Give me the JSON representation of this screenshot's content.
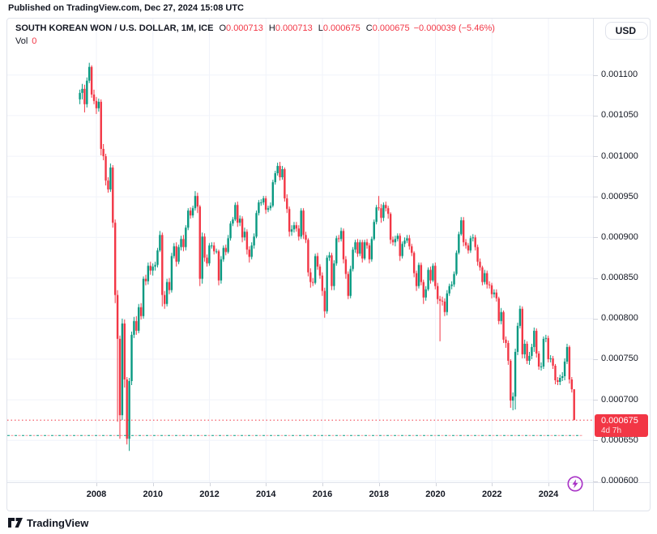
{
  "published_bar": {
    "text": "Published on TradingView.com, Dec 27, 2024 15:08 UTC"
  },
  "header": {
    "symbol": "SOUTH KOREAN WON / U.S. DOLLAR, 1M, ICE",
    "fields": [
      {
        "label": "O",
        "value": "0.000713"
      },
      {
        "label": "H",
        "value": "0.000713"
      },
      {
        "label": "L",
        "value": "0.000675"
      },
      {
        "label": "C",
        "value": "0.000675"
      }
    ],
    "change": "−0.000039 (−5.46%)",
    "volume_label": "Vol",
    "volume_value": "0",
    "currency_button": "USD"
  },
  "footer": {
    "brand": "TradingView"
  },
  "colors": {
    "up": "#089981",
    "down": "#f23645",
    "grid": "#f0f3fa",
    "border": "#e0e3eb",
    "axis_text": "#131722",
    "price_tag_bg": "#f23645",
    "boost_purple": "#a832c6"
  },
  "chart_data": {
    "type": "candlestick",
    "title": "SOUTH KOREAN WON / U.S. DOLLAR",
    "timeframe": "1M",
    "exchange": "ICE",
    "start_month": "2007-06",
    "end_month": "2024-12",
    "unit": "USD per KRW, values in millionths (675 = 0.000675)",
    "candle_format": "[close, upper_wick, lower_wick]; open = previous close",
    "first_open": 1070,
    "candles": [
      [
        1078,
        4,
        6
      ],
      [
        1083,
        6,
        8
      ],
      [
        1064,
        5,
        10
      ],
      [
        1093,
        4,
        4
      ],
      [
        1110,
        5,
        3
      ],
      [
        1076,
        2,
        4
      ],
      [
        1068,
        6,
        4
      ],
      [
        1059,
        5,
        7
      ],
      [
        1067,
        4,
        4
      ],
      [
        1009,
        3,
        8
      ],
      [
        1000,
        6,
        5
      ],
      [
        970,
        3,
        6
      ],
      [
        959,
        4,
        4
      ],
      [
        986,
        5,
        3
      ],
      [
        918,
        3,
        6
      ],
      [
        829,
        4,
        10
      ],
      [
        775,
        6,
        102
      ],
      [
        681,
        4,
        29
      ],
      [
        794,
        6,
        6
      ],
      [
        725,
        5,
        10
      ],
      [
        652,
        3,
        7
      ],
      [
        723,
        4,
        15
      ],
      [
        780,
        4,
        5
      ],
      [
        797,
        5,
        4
      ],
      [
        785,
        6,
        5
      ],
      [
        814,
        4,
        3
      ],
      [
        803,
        5,
        4
      ],
      [
        849,
        3,
        3
      ],
      [
        846,
        5,
        5
      ],
      [
        865,
        4,
        4
      ],
      [
        859,
        5,
        5
      ],
      [
        864,
        4,
        6
      ],
      [
        866,
        4,
        5
      ],
      [
        884,
        3,
        3
      ],
      [
        903,
        5,
        2
      ],
      [
        829,
        3,
        14
      ],
      [
        818,
        5,
        6
      ],
      [
        845,
        4,
        3
      ],
      [
        835,
        5,
        5
      ],
      [
        877,
        4,
        3
      ],
      [
        889,
        4,
        3
      ],
      [
        870,
        5,
        6
      ],
      [
        888,
        3,
        3
      ],
      [
        898,
        4,
        4
      ],
      [
        888,
        5,
        5
      ],
      [
        912,
        3,
        4
      ],
      [
        933,
        3,
        3
      ],
      [
        927,
        4,
        4
      ],
      [
        936,
        3,
        3
      ],
      [
        951,
        6,
        3
      ],
      [
        938,
        4,
        8
      ],
      [
        849,
        2,
        9
      ],
      [
        901,
        5,
        6
      ],
      [
        875,
        4,
        5
      ],
      [
        868,
        4,
        4
      ],
      [
        890,
        3,
        3
      ],
      [
        890,
        4,
        4
      ],
      [
        883,
        4,
        4
      ],
      [
        883,
        3,
        3
      ],
      [
        847,
        2,
        6
      ],
      [
        873,
        4,
        4
      ],
      [
        887,
        3,
        3
      ],
      [
        882,
        4,
        4
      ],
      [
        899,
        4,
        2
      ],
      [
        917,
        3,
        3
      ],
      [
        922,
        3,
        3
      ],
      [
        940,
        3,
        2
      ],
      [
        918,
        4,
        5
      ],
      [
        923,
        4,
        4
      ],
      [
        900,
        3,
        6
      ],
      [
        907,
        5,
        4
      ],
      [
        885,
        3,
        6
      ],
      [
        876,
        4,
        7
      ],
      [
        890,
        4,
        3
      ],
      [
        901,
        4,
        4
      ],
      [
        930,
        3,
        2
      ],
      [
        943,
        3,
        3
      ],
      [
        943,
        4,
        4
      ],
      [
        948,
        3,
        3
      ],
      [
        934,
        3,
        5
      ],
      [
        936,
        3,
        3
      ],
      [
        939,
        4,
        3
      ],
      [
        968,
        3,
        2
      ],
      [
        979,
        3,
        3
      ],
      [
        988,
        4,
        3
      ],
      [
        974,
        5,
        4
      ],
      [
        984,
        4,
        3
      ],
      [
        948,
        2,
        4
      ],
      [
        935,
        5,
        5
      ],
      [
        907,
        3,
        6
      ],
      [
        910,
        5,
        5
      ],
      [
        915,
        4,
        4
      ],
      [
        911,
        4,
        4
      ],
      [
        901,
        4,
        5
      ],
      [
        933,
        3,
        3
      ],
      [
        903,
        3,
        5
      ],
      [
        897,
        4,
        4
      ],
      [
        857,
        2,
        5
      ],
      [
        845,
        5,
        7
      ],
      [
        844,
        5,
        4
      ],
      [
        877,
        3,
        2
      ],
      [
        864,
        4,
        4
      ],
      [
        853,
        3,
        4
      ],
      [
        834,
        4,
        6
      ],
      [
        809,
        4,
        8
      ],
      [
        875,
        3,
        3
      ],
      [
        878,
        4,
        4
      ],
      [
        840,
        3,
        5
      ],
      [
        868,
        4,
        5
      ],
      [
        899,
        3,
        3
      ],
      [
        898,
        4,
        4
      ],
      [
        908,
        4,
        3
      ],
      [
        873,
        3,
        5
      ],
      [
        855,
        4,
        6
      ],
      [
        828,
        3,
        4
      ],
      [
        861,
        4,
        3
      ],
      [
        885,
        3,
        3
      ],
      [
        894,
        3,
        4
      ],
      [
        880,
        4,
        4
      ],
      [
        894,
        3,
        3
      ],
      [
        874,
        3,
        5
      ],
      [
        894,
        3,
        2
      ],
      [
        890,
        4,
        4
      ],
      [
        873,
        3,
        5
      ],
      [
        898,
        3,
        3
      ],
      [
        919,
        3,
        2
      ],
      [
        937,
        3,
        3
      ],
      [
        936,
        14,
        3
      ],
      [
        924,
        5,
        6
      ],
      [
        940,
        3,
        4
      ],
      [
        936,
        4,
        4
      ],
      [
        929,
        3,
        6
      ],
      [
        897,
        2,
        5
      ],
      [
        894,
        4,
        4
      ],
      [
        898,
        4,
        5
      ],
      [
        902,
        3,
        3
      ],
      [
        877,
        3,
        6
      ],
      [
        892,
        3,
        3
      ],
      [
        896,
        4,
        4
      ],
      [
        899,
        4,
        3
      ],
      [
        889,
        4,
        4
      ],
      [
        881,
        3,
        4
      ],
      [
        856,
        2,
        5
      ],
      [
        840,
        3,
        6
      ],
      [
        866,
        3,
        3
      ],
      [
        845,
        3,
        4
      ],
      [
        826,
        3,
        8
      ],
      [
        836,
        4,
        4
      ],
      [
        860,
        3,
        2
      ],
      [
        847,
        4,
        4
      ],
      [
        865,
        3,
        2
      ],
      [
        840,
        4,
        4
      ],
      [
        824,
        4,
        6
      ],
      [
        822,
        4,
        50
      ],
      [
        821,
        5,
        5
      ],
      [
        808,
        4,
        5
      ],
      [
        831,
        4,
        4
      ],
      [
        840,
        3,
        3
      ],
      [
        842,
        4,
        4
      ],
      [
        855,
        3,
        3
      ],
      [
        881,
        3,
        2
      ],
      [
        904,
        3,
        2
      ],
      [
        921,
        4,
        2
      ],
      [
        894,
        4,
        5
      ],
      [
        890,
        4,
        4
      ],
      [
        884,
        3,
        4
      ],
      [
        899,
        3,
        3
      ],
      [
        900,
        4,
        4
      ],
      [
        888,
        3,
        4
      ],
      [
        870,
        3,
        5
      ],
      [
        863,
        4,
        4
      ],
      [
        845,
        2,
        4
      ],
      [
        856,
        4,
        3
      ],
      [
        842,
        3,
        5
      ],
      [
        841,
        4,
        4
      ],
      [
        830,
        3,
        5
      ],
      [
        832,
        4,
        4
      ],
      [
        825,
        4,
        4
      ],
      [
        797,
        2,
        4
      ],
      [
        808,
        5,
        4
      ],
      [
        774,
        2,
        4
      ],
      [
        770,
        4,
        6
      ],
      [
        748,
        3,
        5
      ],
      [
        699,
        2,
        9
      ],
      [
        704,
        5,
        12
      ],
      [
        759,
        4,
        16
      ],
      [
        791,
        4,
        4
      ],
      [
        812,
        4,
        3
      ],
      [
        756,
        3,
        5
      ],
      [
        769,
        5,
        5
      ],
      [
        748,
        3,
        4
      ],
      [
        754,
        5,
        5
      ],
      [
        765,
        4,
        4
      ],
      [
        785,
        4,
        6
      ],
      [
        757,
        3,
        5
      ],
      [
        741,
        3,
        4
      ],
      [
        741,
        5,
        5
      ],
      [
        775,
        3,
        3
      ],
      [
        776,
        4,
        4
      ],
      [
        750,
        3,
        4
      ],
      [
        751,
        4,
        4
      ],
      [
        742,
        3,
        4
      ],
      [
        724,
        2,
        5
      ],
      [
        722,
        4,
        4
      ],
      [
        727,
        4,
        4
      ],
      [
        729,
        5,
        4
      ],
      [
        747,
        4,
        5
      ],
      [
        765,
        4,
        3
      ],
      [
        725,
        2,
        5
      ],
      [
        713,
        3,
        4
      ],
      [
        675,
        0,
        0
      ]
    ],
    "y_tick_micro": [
      1100,
      1050,
      1000,
      950,
      900,
      850,
      800,
      750,
      700,
      650,
      600
    ],
    "y_tick_labels": [
      "0.001100",
      "0.001050",
      "0.001000",
      "0.000950",
      "0.000900",
      "0.000850",
      "0.000800",
      "0.000750",
      "0.000700",
      "0.000650",
      "0.000600"
    ],
    "x_ticks": [
      2008,
      2010,
      2012,
      2014,
      2016,
      2018,
      2020,
      2022,
      2024
    ],
    "current_price_micro": 675,
    "current_price_label": "0.000675",
    "countdown": "4d 7h",
    "dashed_low_line_micro": 656,
    "grid": true,
    "legend_position": "none"
  }
}
